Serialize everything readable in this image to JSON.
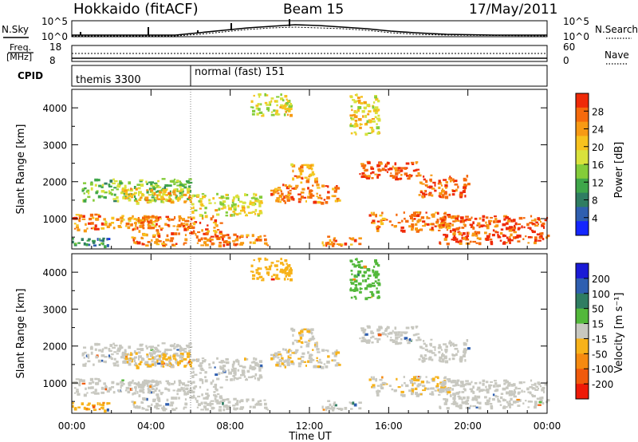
{
  "header": {
    "title": "Hokkaido (fitACF)",
    "beam": "Beam 15",
    "date": "17/May/2011"
  },
  "summary": {
    "nsky_label": "N.Sky",
    "nsearch_label": "N.Search",
    "noise_ticks_left": [
      "10^5",
      "10^0"
    ],
    "noise_ticks_right": [
      "10^5",
      "10^0"
    ],
    "freq_label_1": "Freq.",
    "freq_label_2": "[MHz]",
    "freq_ticks": [
      "18",
      "8"
    ],
    "nave_label": "Nave",
    "nave_ticks": [
      "60",
      "0"
    ],
    "cpid_label": "CPID",
    "cpid_modes": [
      {
        "name": "themis 3300",
        "start_hour": 0
      },
      {
        "name": "normal (fast) 151",
        "start_hour": 6
      }
    ]
  },
  "axes": {
    "xlabel": "Time UT",
    "x_tick_labels": [
      "00:00",
      "04:00",
      "08:00",
      "12:00",
      "16:00",
      "20:00",
      "00:00"
    ],
    "x_range_hours": [
      0,
      24
    ],
    "ylabel": "Slant Range [km]",
    "y_tick_labels": [
      "1000",
      "2000",
      "3000",
      "4000"
    ],
    "y_range_km": [
      180,
      4500
    ]
  },
  "colorbars": {
    "power": {
      "label": "Power [dB]",
      "ticks": [
        "28",
        "24",
        "20",
        "16",
        "12",
        "8",
        "4"
      ],
      "colors": [
        "#1426ff",
        "#2f5fb0",
        "#2f7d62",
        "#3fa64a",
        "#84cc3a",
        "#d9e23c",
        "#f7c21e",
        "#f79a14",
        "#f56a0c",
        "#ef2a08"
      ]
    },
    "velocity": {
      "label": "Velocity [m s⁻¹]",
      "ticks": [
        "200",
        "100",
        "50",
        "15",
        "-15",
        "-50",
        "-100",
        "-200"
      ],
      "colors": [
        "#1a1ad6",
        "#2f5fb0",
        "#2f7d62",
        "#53b83b",
        "#c8c8c0",
        "#f7b21a",
        "#f58a10",
        "#f05a0c",
        "#ee1a08"
      ]
    }
  },
  "chart_data": {
    "type": "heatmap",
    "title": "Hokkaido (fitACF)",
    "xlabel": "Time UT",
    "ylabel": "Slant Range [km]",
    "x_unit": "hours UT",
    "xlim": [
      0,
      24
    ],
    "ylim": [
      180,
      4500
    ],
    "panels": [
      {
        "name": "Power",
        "colorbar": "Power [dB]",
        "range": [
          0,
          32
        ]
      },
      {
        "name": "Velocity",
        "colorbar": "Velocity [m s-1]",
        "range": [
          -250,
          250
        ]
      }
    ],
    "echo_bands": [
      {
        "t": [
          0.0,
          2.0
        ],
        "r": [
          250,
          500
        ],
        "power": 8,
        "velocity": -40
      },
      {
        "t": [
          0.0,
          1.5
        ],
        "r": [
          700,
          1150
        ],
        "power": 26,
        "velocity": 0
      },
      {
        "t": [
          1.5,
          4.5
        ],
        "r": [
          780,
          1100
        ],
        "power": 22,
        "velocity": 0
      },
      {
        "t": [
          0.5,
          6.0
        ],
        "r": [
          1500,
          2100
        ],
        "power": 14,
        "velocity": 0
      },
      {
        "t": [
          2.5,
          6.0
        ],
        "r": [
          1450,
          1850
        ],
        "power": 22,
        "velocity": -20
      },
      {
        "t": [
          3.0,
          7.5
        ],
        "r": [
          300,
          1100
        ],
        "power": 26,
        "velocity": 0
      },
      {
        "t": [
          6.0,
          9.5
        ],
        "r": [
          1100,
          1700
        ],
        "power": 18,
        "velocity": 0
      },
      {
        "t": [
          7.5,
          10.0
        ],
        "r": [
          300,
          600
        ],
        "power": 26,
        "velocity": 0
      },
      {
        "t": [
          10.0,
          13.5
        ],
        "r": [
          1450,
          1950
        ],
        "power": 26,
        "velocity": -10
      },
      {
        "t": [
          11.0,
          12.5
        ],
        "r": [
          2000,
          2500
        ],
        "power": 24,
        "velocity": -10
      },
      {
        "t": [
          12.5,
          14.5
        ],
        "r": [
          300,
          550
        ],
        "power": 26,
        "velocity": 0
      },
      {
        "t": [
          14.5,
          17.5
        ],
        "r": [
          2100,
          2600
        ],
        "power": 28,
        "velocity": 0
      },
      {
        "t": [
          15.0,
          19.0
        ],
        "r": [
          700,
          1200
        ],
        "power": 26,
        "velocity": -10
      },
      {
        "t": [
          17.5,
          20.0
        ],
        "r": [
          1600,
          2200
        ],
        "power": 28,
        "velocity": 0
      },
      {
        "t": [
          18.5,
          24.0
        ],
        "r": [
          350,
          1100
        ],
        "power": 28,
        "velocity": 0
      },
      {
        "t": [
          14.0,
          15.5
        ],
        "r": [
          3300,
          4400
        ],
        "power": 20,
        "velocity": 30
      },
      {
        "t": [
          9.0,
          11.0
        ],
        "r": [
          3800,
          4400
        ],
        "power": 18,
        "velocity": -30
      }
    ]
  }
}
